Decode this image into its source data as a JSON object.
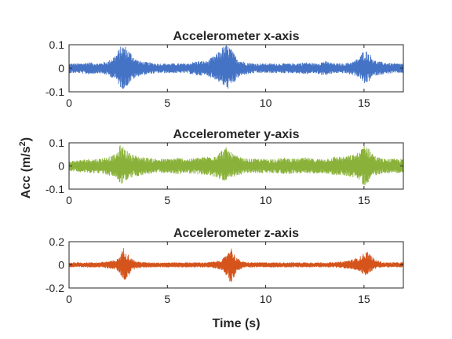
{
  "figure": {
    "ylabel": "Acc (m/s",
    "ylabel_sup": "2",
    "ylabel_close": ")",
    "xlabel": "Time (s)"
  },
  "chart_data": [
    {
      "type": "line",
      "title": "Accelerometer x-axis",
      "xlabel": "",
      "ylabel": "",
      "xlim": [
        0,
        17
      ],
      "ylim": [
        -0.1,
        0.1
      ],
      "xticks": [
        0,
        5,
        10,
        15
      ],
      "yticks": [
        -0.1,
        0,
        0.1
      ],
      "xtick_labels": [
        "0",
        "5",
        "10",
        "15"
      ],
      "ytick_labels": [
        "-0.1",
        "0",
        "0.1"
      ],
      "grid": false,
      "series": [
        {
          "color": "#4472C4",
          "x": [
            0,
            0.5,
            1.0,
            1.5,
            2.0,
            2.4,
            2.6,
            2.8,
            3.0,
            3.2,
            3.4,
            3.6,
            4.0,
            4.5,
            5.0,
            5.5,
            6.0,
            6.5,
            7.0,
            7.5,
            7.8,
            8.0,
            8.2,
            8.4,
            8.6,
            8.8,
            9.0,
            9.5,
            10.0,
            10.5,
            11.0,
            11.5,
            12.0,
            12.5,
            13.0,
            13.5,
            14.0,
            14.5,
            14.8,
            15.0,
            15.2,
            15.4,
            15.6,
            16.0,
            16.5,
            17.0
          ],
          "upper": [
            0.02,
            0.02,
            0.025,
            0.02,
            0.03,
            0.06,
            0.09,
            0.1,
            0.08,
            0.06,
            0.04,
            0.03,
            0.025,
            0.02,
            0.02,
            0.02,
            0.02,
            0.03,
            0.03,
            0.06,
            0.09,
            0.1,
            0.09,
            0.06,
            0.04,
            0.03,
            0.025,
            0.02,
            0.02,
            0.02,
            0.02,
            0.02,
            0.025,
            0.02,
            0.03,
            0.02,
            0.02,
            0.03,
            0.05,
            0.08,
            0.07,
            0.05,
            0.03,
            0.025,
            0.02,
            0.02
          ],
          "lower": [
            -0.02,
            -0.02,
            -0.025,
            -0.02,
            -0.03,
            -0.05,
            -0.08,
            -0.09,
            -0.07,
            -0.05,
            -0.04,
            -0.03,
            -0.025,
            -0.02,
            -0.02,
            -0.02,
            -0.02,
            -0.03,
            -0.03,
            -0.05,
            -0.07,
            -0.09,
            -0.08,
            -0.06,
            -0.04,
            -0.03,
            -0.025,
            -0.02,
            -0.02,
            -0.02,
            -0.02,
            -0.02,
            -0.025,
            -0.02,
            -0.03,
            -0.02,
            -0.02,
            -0.03,
            -0.04,
            -0.07,
            -0.06,
            -0.04,
            -0.03,
            -0.025,
            -0.02,
            -0.02
          ]
        }
      ]
    },
    {
      "type": "line",
      "title": "Accelerometer y-axis",
      "xlabel": "",
      "ylabel": "",
      "xlim": [
        0,
        17
      ],
      "ylim": [
        -0.1,
        0.1
      ],
      "xticks": [
        0,
        5,
        10,
        15
      ],
      "yticks": [
        -0.1,
        0,
        0.1
      ],
      "xtick_labels": [
        "0",
        "5",
        "10",
        "15"
      ],
      "ytick_labels": [
        "-0.1",
        "0",
        "0.1"
      ],
      "grid": false,
      "series": [
        {
          "color": "#8AB23A",
          "x": [
            0,
            0.5,
            1.0,
            1.5,
            2.0,
            2.4,
            2.6,
            2.8,
            3.0,
            3.2,
            3.4,
            3.6,
            4.0,
            4.5,
            5.0,
            5.5,
            6.0,
            6.5,
            7.0,
            7.5,
            7.8,
            8.0,
            8.2,
            8.4,
            8.6,
            8.8,
            9.0,
            9.5,
            10.0,
            10.5,
            11.0,
            11.5,
            12.0,
            12.5,
            13.0,
            13.5,
            14.0,
            14.5,
            14.8,
            15.0,
            15.2,
            15.4,
            15.6,
            16.0,
            16.5,
            17.0
          ],
          "upper": [
            0.02,
            0.025,
            0.03,
            0.03,
            0.04,
            0.05,
            0.09,
            0.08,
            0.06,
            0.05,
            0.045,
            0.04,
            0.035,
            0.03,
            0.03,
            0.035,
            0.03,
            0.035,
            0.04,
            0.05,
            0.07,
            0.08,
            0.06,
            0.05,
            0.04,
            0.035,
            0.03,
            0.03,
            0.03,
            0.03,
            0.035,
            0.03,
            0.035,
            0.03,
            0.03,
            0.04,
            0.04,
            0.05,
            0.06,
            0.1,
            0.08,
            0.06,
            0.04,
            0.03,
            0.03,
            0.03
          ],
          "lower": [
            -0.02,
            -0.025,
            -0.03,
            -0.03,
            -0.04,
            -0.05,
            -0.08,
            -0.07,
            -0.06,
            -0.05,
            -0.045,
            -0.04,
            -0.035,
            -0.03,
            -0.03,
            -0.035,
            -0.03,
            -0.035,
            -0.04,
            -0.05,
            -0.06,
            -0.07,
            -0.06,
            -0.05,
            -0.04,
            -0.035,
            -0.03,
            -0.03,
            -0.03,
            -0.03,
            -0.035,
            -0.03,
            -0.035,
            -0.03,
            -0.03,
            -0.04,
            -0.04,
            -0.05,
            -0.06,
            -0.09,
            -0.07,
            -0.05,
            -0.04,
            -0.03,
            -0.03,
            -0.03
          ]
        }
      ]
    },
    {
      "type": "line",
      "title": "Accelerometer z-axis",
      "xlabel": "Time (s)",
      "ylabel": "",
      "xlim": [
        0,
        17
      ],
      "ylim": [
        -0.2,
        0.2
      ],
      "xticks": [
        0,
        5,
        10,
        15
      ],
      "yticks": [
        -0.2,
        0,
        0.2
      ],
      "xtick_labels": [
        "0",
        "5",
        "10",
        "15"
      ],
      "ytick_labels": [
        "-0.2",
        "0",
        "0.2"
      ],
      "grid": false,
      "series": [
        {
          "color": "#D4541C",
          "x": [
            0,
            0.5,
            1.0,
            1.5,
            2.0,
            2.4,
            2.6,
            2.8,
            3.0,
            3.2,
            3.4,
            3.6,
            4.0,
            4.5,
            5.0,
            5.5,
            6.0,
            6.5,
            7.0,
            7.5,
            7.8,
            8.0,
            8.2,
            8.4,
            8.6,
            8.8,
            9.0,
            9.5,
            10.0,
            10.5,
            11.0,
            11.5,
            12.0,
            12.5,
            13.0,
            13.5,
            14.0,
            14.5,
            14.8,
            15.0,
            15.2,
            15.4,
            15.6,
            16.0,
            16.5,
            17.0
          ],
          "upper": [
            0.02,
            0.02,
            0.02,
            0.02,
            0.03,
            0.04,
            0.08,
            0.16,
            0.09,
            0.05,
            0.03,
            0.025,
            0.02,
            0.02,
            0.02,
            0.02,
            0.02,
            0.02,
            0.02,
            0.03,
            0.05,
            0.08,
            0.17,
            0.09,
            0.05,
            0.03,
            0.02,
            0.02,
            0.02,
            0.02,
            0.02,
            0.02,
            0.02,
            0.02,
            0.02,
            0.02,
            0.03,
            0.05,
            0.07,
            0.1,
            0.12,
            0.07,
            0.04,
            0.02,
            0.02,
            0.02
          ],
          "lower": [
            -0.02,
            -0.02,
            -0.02,
            -0.02,
            -0.03,
            -0.04,
            -0.08,
            -0.14,
            -0.1,
            -0.05,
            -0.03,
            -0.025,
            -0.02,
            -0.02,
            -0.02,
            -0.02,
            -0.02,
            -0.02,
            -0.02,
            -0.03,
            -0.05,
            -0.09,
            -0.16,
            -0.1,
            -0.05,
            -0.03,
            -0.02,
            -0.02,
            -0.02,
            -0.02,
            -0.02,
            -0.02,
            -0.02,
            -0.02,
            -0.02,
            -0.02,
            -0.03,
            -0.04,
            -0.06,
            -0.09,
            -0.08,
            -0.05,
            -0.03,
            -0.02,
            -0.02,
            -0.02
          ]
        }
      ]
    }
  ]
}
